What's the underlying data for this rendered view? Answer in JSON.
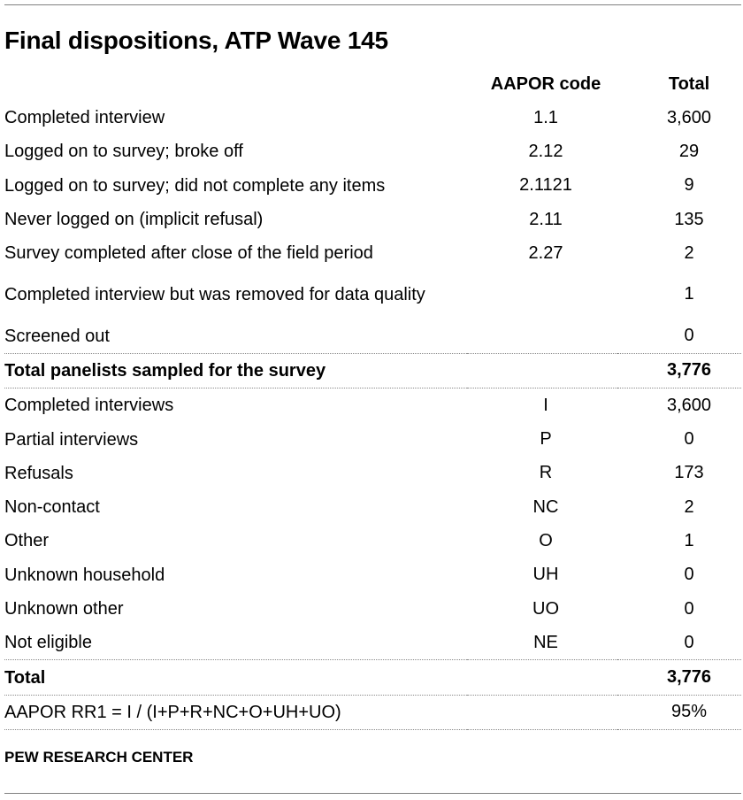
{
  "title": "Final dispositions, ATP Wave 145",
  "headers": {
    "label": "",
    "code": "AAPOR code",
    "total": "Total"
  },
  "rows": [
    {
      "label": "Completed interview",
      "code": "1.1",
      "total": "3,600"
    },
    {
      "label": "Logged on to survey; broke off",
      "code": "2.12",
      "total": "29"
    },
    {
      "label": "Logged on to survey; did not complete any items",
      "code": "2.1121",
      "total": "9"
    },
    {
      "label": "Never logged on (implicit refusal)",
      "code": "2.11",
      "total": "135"
    },
    {
      "label": "Survey completed after close of the field period",
      "code": "2.27",
      "total": "2"
    },
    {
      "label": "Completed interview but was removed for data quality",
      "code": "",
      "total": "1"
    },
    {
      "label": "Screened out",
      "code": "",
      "total": "0"
    },
    {
      "label": "Total panelists sampled for the survey",
      "code": "",
      "total": "3,776"
    },
    {
      "label": "Completed interviews",
      "code": "I",
      "total": "3,600"
    },
    {
      "label": "Partial interviews",
      "code": "P",
      "total": "0"
    },
    {
      "label": "Refusals",
      "code": "R",
      "total": "173"
    },
    {
      "label": "Non-contact",
      "code": "NC",
      "total": "2"
    },
    {
      "label": "Other",
      "code": "O",
      "total": "1"
    },
    {
      "label": "Unknown household",
      "code": "UH",
      "total": "0"
    },
    {
      "label": "Unknown other",
      "code": "UO",
      "total": "0"
    },
    {
      "label": "Not eligible",
      "code": "NE",
      "total": "0"
    },
    {
      "label": "Total",
      "code": "",
      "total": "3,776"
    },
    {
      "label": "AAPOR RR1 = I / (I+P+R+NC+O+UH+UO)",
      "code": "",
      "total": "95%"
    }
  ],
  "source": "PEW RESEARCH CENTER"
}
